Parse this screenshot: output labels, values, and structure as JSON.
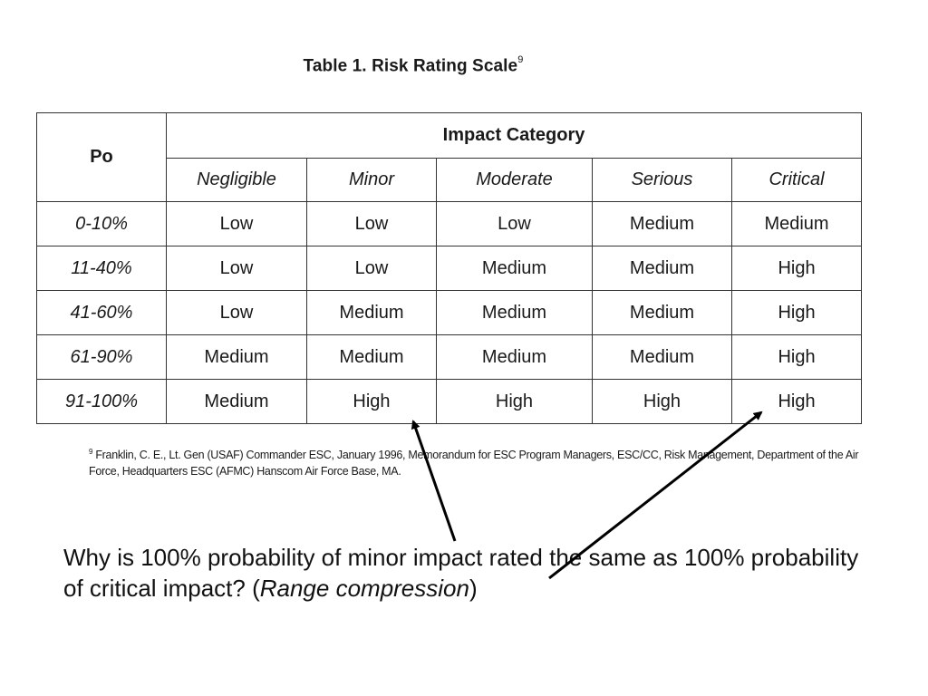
{
  "title": {
    "text": "Table 1. Risk Rating Scale",
    "footnote_marker": "9"
  },
  "table": {
    "po_header": "Po",
    "group_header": "Impact Category",
    "columns": [
      "Negligible",
      "Minor",
      "Moderate",
      "Serious",
      "Critical"
    ],
    "rows": [
      {
        "probability": "0-10%",
        "ratings": [
          "Low",
          "Low",
          "Low",
          "Medium",
          "Medium"
        ]
      },
      {
        "probability": "11-40%",
        "ratings": [
          "Low",
          "Low",
          "Medium",
          "Medium",
          "High"
        ]
      },
      {
        "probability": "41-60%",
        "ratings": [
          "Low",
          "Medium",
          "Medium",
          "Medium",
          "High"
        ]
      },
      {
        "probability": "61-90%",
        "ratings": [
          "Medium",
          "Medium",
          "Medium",
          "Medium",
          "High"
        ]
      },
      {
        "probability": "91-100%",
        "ratings": [
          "Medium",
          "High",
          "High",
          "High",
          "High"
        ]
      }
    ]
  },
  "footnote": {
    "marker": "9",
    "text": "Franklin, C. E., Lt. Gen (USAF) Commander ESC, January 1996, Memorandum for ESC Program Managers, ESC/CC, Risk Management, Department of the Air Force, Headquarters ESC (AFMC) Hanscom Air Force Base, MA."
  },
  "question": {
    "text": "Why is 100% probability of minor impact rated the same as 100% probability of critical impact? (",
    "emphasis": "Range compression",
    "close": ")"
  },
  "arrows": {
    "color": "#000000"
  }
}
